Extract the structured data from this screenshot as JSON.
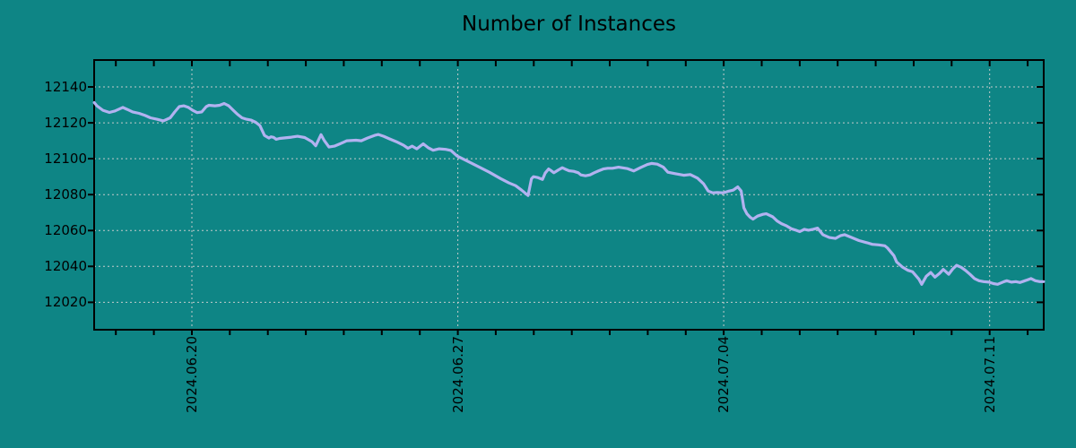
{
  "page": {
    "background_color": "#0e8585",
    "kind": "time-series monitoring chart"
  },
  "chart_data": {
    "type": "line",
    "title": "Number of Instances",
    "legend": "none",
    "grid": "dotted, vertical lines at weekly date ticks, horizontal lines every 20 units",
    "colors": {
      "background": "#0e8585",
      "line": "#b2b2f0",
      "grid": "#cfcfcf",
      "axis": "#000000",
      "text": "#000000"
    },
    "x_axis": {
      "label": "",
      "unit": "date",
      "range_days": [
        -2.572,
        22.423
      ],
      "minor_tick_step_days": 1,
      "major_ticks": [
        {
          "d": 0,
          "label": "2024.06.20"
        },
        {
          "d": 7,
          "label": "2024.06.27"
        },
        {
          "d": 14,
          "label": "2024.07.04"
        },
        {
          "d": 21,
          "label": "2024.07.11"
        }
      ]
    },
    "y_axis": {
      "label": "",
      "range": [
        12004.7,
        12155.0
      ],
      "ticks": [
        12140,
        12120,
        12100,
        12080,
        12060,
        12040,
        12020
      ]
    },
    "series": [
      {
        "name": "instances",
        "color": "#b2b2f0"
      }
    ],
    "points": [
      [
        -2.57,
        12131.3
      ],
      [
        -2.5,
        12129.5
      ],
      [
        -2.34,
        12127.0
      ],
      [
        -2.17,
        12125.8
      ],
      [
        -2.03,
        12126.6
      ],
      [
        -1.82,
        12128.6
      ],
      [
        -1.7,
        12127.5
      ],
      [
        -1.56,
        12126.1
      ],
      [
        -1.39,
        12125.3
      ],
      [
        -1.23,
        12124.1
      ],
      [
        -1.09,
        12122.8
      ],
      [
        -0.92,
        12122.0
      ],
      [
        -0.75,
        12121.1
      ],
      [
        -0.57,
        12122.8
      ],
      [
        -0.45,
        12126.1
      ],
      [
        -0.33,
        12129.1
      ],
      [
        -0.21,
        12129.5
      ],
      [
        -0.09,
        12128.6
      ],
      [
        0.02,
        12127.0
      ],
      [
        0.14,
        12125.7
      ],
      [
        0.26,
        12126.1
      ],
      [
        0.38,
        12129.1
      ],
      [
        0.45,
        12129.8
      ],
      [
        0.61,
        12129.5
      ],
      [
        0.73,
        12129.8
      ],
      [
        0.85,
        12130.8
      ],
      [
        0.97,
        12129.5
      ],
      [
        1.09,
        12127.0
      ],
      [
        1.2,
        12124.8
      ],
      [
        1.32,
        12122.8
      ],
      [
        1.44,
        12122.0
      ],
      [
        1.56,
        12121.5
      ],
      [
        1.68,
        12120.3
      ],
      [
        1.79,
        12118.5
      ],
      [
        1.91,
        12113.0
      ],
      [
        2.03,
        12111.5
      ],
      [
        2.08,
        12112.2
      ],
      [
        2.15,
        12111.9
      ],
      [
        2.22,
        12110.8
      ],
      [
        2.31,
        12111.3
      ],
      [
        2.45,
        12111.6
      ],
      [
        2.62,
        12112.0
      ],
      [
        2.78,
        12112.5
      ],
      [
        2.97,
        12111.8
      ],
      [
        3.16,
        12109.5
      ],
      [
        3.26,
        12107.2
      ],
      [
        3.4,
        12113.4
      ],
      [
        3.49,
        12110.0
      ],
      [
        3.61,
        12106.5
      ],
      [
        3.75,
        12107.0
      ],
      [
        3.92,
        12108.5
      ],
      [
        4.08,
        12110.0
      ],
      [
        4.32,
        12110.3
      ],
      [
        4.46,
        12110.0
      ],
      [
        4.62,
        12111.5
      ],
      [
        4.81,
        12113.0
      ],
      [
        4.91,
        12113.5
      ],
      [
        5.05,
        12112.5
      ],
      [
        5.21,
        12111.0
      ],
      [
        5.38,
        12109.5
      ],
      [
        5.57,
        12107.5
      ],
      [
        5.69,
        12105.8
      ],
      [
        5.8,
        12107.0
      ],
      [
        5.92,
        12105.5
      ],
      [
        6.09,
        12108.3
      ],
      [
        6.23,
        12106.0
      ],
      [
        6.35,
        12104.7
      ],
      [
        6.51,
        12105.5
      ],
      [
        6.68,
        12105.2
      ],
      [
        6.82,
        12104.6
      ],
      [
        6.98,
        12101.5
      ],
      [
        7.27,
        12098.5
      ],
      [
        7.55,
        12095.5
      ],
      [
        7.83,
        12092.5
      ],
      [
        8.12,
        12089.0
      ],
      [
        8.35,
        12086.5
      ],
      [
        8.52,
        12085.0
      ],
      [
        8.68,
        12082.5
      ],
      [
        8.85,
        12079.5
      ],
      [
        8.94,
        12088.8
      ],
      [
        8.99,
        12090.0
      ],
      [
        9.11,
        12089.5
      ],
      [
        9.23,
        12088.5
      ],
      [
        9.3,
        12092.0
      ],
      [
        9.39,
        12094.3
      ],
      [
        9.46,
        12093.3
      ],
      [
        9.53,
        12092.2
      ],
      [
        9.65,
        12093.8
      ],
      [
        9.75,
        12095.0
      ],
      [
        9.82,
        12094.3
      ],
      [
        9.93,
        12093.3
      ],
      [
        10.05,
        12093.0
      ],
      [
        10.17,
        12092.2
      ],
      [
        10.24,
        12091.0
      ],
      [
        10.36,
        12090.5
      ],
      [
        10.48,
        12091.0
      ],
      [
        10.59,
        12092.2
      ],
      [
        10.71,
        12093.3
      ],
      [
        10.83,
        12094.3
      ],
      [
        10.95,
        12094.7
      ],
      [
        11.07,
        12094.7
      ],
      [
        11.23,
        12095.3
      ],
      [
        11.47,
        12094.5
      ],
      [
        11.63,
        12093.2
      ],
      [
        11.82,
        12095.2
      ],
      [
        11.99,
        12096.8
      ],
      [
        12.1,
        12097.4
      ],
      [
        12.25,
        12097.0
      ],
      [
        12.41,
        12095.3
      ],
      [
        12.53,
        12092.5
      ],
      [
        12.72,
        12091.7
      ],
      [
        12.95,
        12090.8
      ],
      [
        13.12,
        12091.2
      ],
      [
        13.31,
        12089.2
      ],
      [
        13.47,
        12086.0
      ],
      [
        13.59,
        12082.0
      ],
      [
        13.71,
        12081.0
      ],
      [
        13.83,
        12081.2
      ],
      [
        13.99,
        12081.0
      ],
      [
        14.11,
        12081.8
      ],
      [
        14.25,
        12082.5
      ],
      [
        14.37,
        12084.3
      ],
      [
        14.46,
        12082.0
      ],
      [
        14.53,
        12072.6
      ],
      [
        14.61,
        12069.3
      ],
      [
        14.7,
        12067.3
      ],
      [
        14.77,
        12066.3
      ],
      [
        14.89,
        12068.0
      ],
      [
        15.03,
        12069.0
      ],
      [
        15.12,
        12069.3
      ],
      [
        15.29,
        12067.6
      ],
      [
        15.41,
        12065.2
      ],
      [
        15.52,
        12063.8
      ],
      [
        15.64,
        12062.7
      ],
      [
        15.78,
        12061.0
      ],
      [
        15.9,
        12060.2
      ],
      [
        16.0,
        12059.4
      ],
      [
        16.12,
        12060.7
      ],
      [
        16.23,
        12060.2
      ],
      [
        16.35,
        12060.7
      ],
      [
        16.47,
        12061.3
      ],
      [
        16.61,
        12057.7
      ],
      [
        16.78,
        12056.1
      ],
      [
        16.94,
        12055.6
      ],
      [
        17.08,
        12057.2
      ],
      [
        17.18,
        12057.7
      ],
      [
        17.37,
        12056.1
      ],
      [
        17.56,
        12054.4
      ],
      [
        17.77,
        12053.2
      ],
      [
        17.91,
        12052.3
      ],
      [
        18.08,
        12052.0
      ],
      [
        18.24,
        12051.5
      ],
      [
        18.31,
        12050.3
      ],
      [
        18.48,
        12046.0
      ],
      [
        18.55,
        12042.5
      ],
      [
        18.71,
        12039.5
      ],
      [
        18.85,
        12037.8
      ],
      [
        18.97,
        12037.0
      ],
      [
        19.14,
        12032.8
      ],
      [
        19.21,
        12030.0
      ],
      [
        19.33,
        12034.5
      ],
      [
        19.45,
        12036.6
      ],
      [
        19.56,
        12034.0
      ],
      [
        19.68,
        12036.1
      ],
      [
        19.78,
        12038.3
      ],
      [
        19.85,
        12037.0
      ],
      [
        19.92,
        12035.6
      ],
      [
        20.03,
        12038.6
      ],
      [
        20.13,
        12040.6
      ],
      [
        20.25,
        12039.5
      ],
      [
        20.36,
        12037.8
      ],
      [
        20.48,
        12035.6
      ],
      [
        20.6,
        12033.2
      ],
      [
        20.72,
        12032.0
      ],
      [
        20.84,
        12031.5
      ],
      [
        20.98,
        12031.2
      ],
      [
        21.1,
        12030.4
      ],
      [
        21.21,
        12030.0
      ],
      [
        21.38,
        12031.5
      ],
      [
        21.45,
        12032.0
      ],
      [
        21.57,
        12031.2
      ],
      [
        21.69,
        12031.5
      ],
      [
        21.8,
        12031.0
      ],
      [
        21.97,
        12032.3
      ],
      [
        22.09,
        12033.2
      ],
      [
        22.2,
        12032.0
      ],
      [
        22.32,
        12031.5
      ],
      [
        22.42,
        12031.5
      ]
    ]
  }
}
